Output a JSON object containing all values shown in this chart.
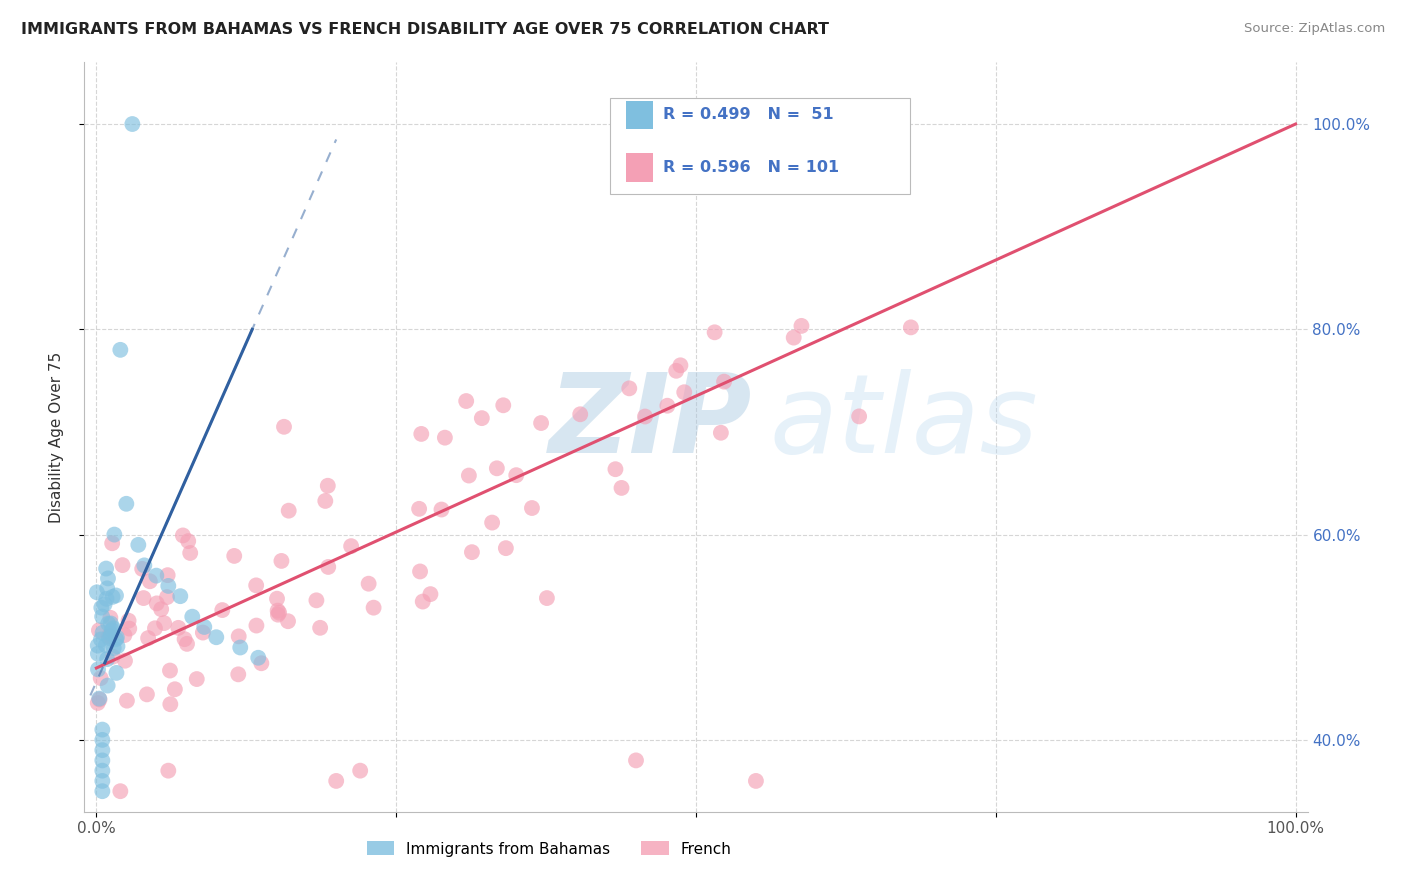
{
  "title": "IMMIGRANTS FROM BAHAMAS VS FRENCH DISABILITY AGE OVER 75 CORRELATION CHART",
  "source": "Source: ZipAtlas.com",
  "ylabel": "Disability Age Over 75",
  "xlim": [
    -0.01,
    1.01
  ],
  "ylim": [
    0.33,
    1.06
  ],
  "xticks": [
    0.0,
    0.25,
    0.5,
    0.75,
    1.0
  ],
  "xtick_labels": [
    "0.0%",
    "",
    "",
    "",
    "100.0%"
  ],
  "ytick_right": [
    0.4,
    0.6,
    0.8,
    1.0
  ],
  "ytick_right_labels": [
    "40.0%",
    "60.0%",
    "80.0%",
    "100.0%"
  ],
  "legend_r_blue": "0.499",
  "legend_n_blue": "51",
  "legend_r_pink": "0.596",
  "legend_n_pink": "101",
  "blue_color": "#7fbfdf",
  "pink_color": "#f4a0b5",
  "trend_blue_color": "#3060a0",
  "trend_pink_color": "#e05070",
  "background_color": "#ffffff",
  "watermark_zip": "ZIP",
  "watermark_atlas": "atlas",
  "grid_color": "#cccccc",
  "right_tick_color": "#4472c4",
  "title_color": "#222222",
  "source_color": "#888888",
  "ylabel_color": "#333333",
  "pink_line_x0": 0.0,
  "pink_line_y0": 0.47,
  "pink_line_x1": 1.0,
  "pink_line_y1": 1.0,
  "blue_line_solid_x0": 0.007,
  "blue_line_solid_y0": 0.475,
  "blue_line_solid_x1": 0.13,
  "blue_line_solid_y1": 0.8,
  "blue_line_dash_x0": -0.005,
  "blue_line_dash_y0": 0.43,
  "blue_line_dash_x1": 0.2,
  "blue_line_dash_y1": 1.02
}
